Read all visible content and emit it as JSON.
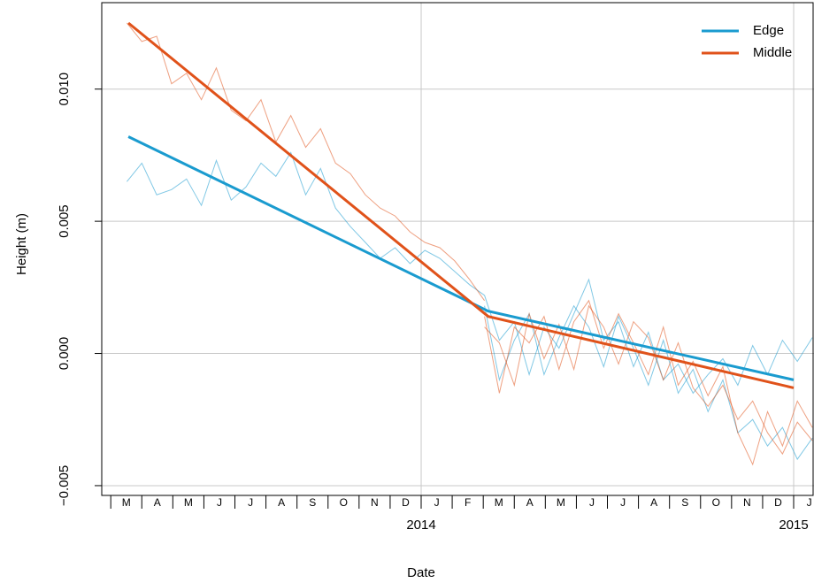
{
  "chart_data": {
    "type": "line",
    "x_label": "Date",
    "y_label": "Height (m)",
    "xlim": [
      2013.1425,
      2015.0546
    ],
    "ylim": [
      -0.00537,
      0.01327
    ],
    "grid": true,
    "legend": "top-right",
    "yticks": [
      {
        "value": 0.01,
        "label": "0.010"
      },
      {
        "value": 0.005,
        "label": "0.005"
      },
      {
        "value": 0,
        "label": "0.000"
      },
      {
        "value": -0.005,
        "label": "−0.005"
      }
    ],
    "xticks": [
      2014,
      2015
    ],
    "x_minor_ticks": [
      2013.1667,
      2013.25,
      2013.3333,
      2013.4167,
      2013.5,
      2013.5833,
      2013.6667,
      2013.75,
      2013.8333,
      2013.9167,
      2014,
      2014.0833,
      2014.1667,
      2014.25,
      2014.3333,
      2014.4167,
      2014.5,
      2014.5833,
      2014.6667,
      2014.75,
      2014.8333,
      2014.9167,
      2015
    ],
    "x_month_labels": [
      {
        "value": 2013.2083,
        "label": "M"
      },
      {
        "value": 2013.2917,
        "label": "A"
      },
      {
        "value": 2013.375,
        "label": "M"
      },
      {
        "value": 2013.4583,
        "label": "J"
      },
      {
        "value": 2013.5417,
        "label": "J"
      },
      {
        "value": 2013.625,
        "label": "A"
      },
      {
        "value": 2013.7083,
        "label": "S"
      },
      {
        "value": 2013.7917,
        "label": "O"
      },
      {
        "value": 2013.875,
        "label": "N"
      },
      {
        "value": 2013.9583,
        "label": "D"
      },
      {
        "value": 2014.0417,
        "label": "J"
      },
      {
        "value": 2014.125,
        "label": "F"
      },
      {
        "value": 2014.2083,
        "label": "M"
      },
      {
        "value": 2014.2917,
        "label": "A"
      },
      {
        "value": 2014.375,
        "label": "M"
      },
      {
        "value": 2014.4583,
        "label": "J"
      },
      {
        "value": 2014.5417,
        "label": "J"
      },
      {
        "value": 2014.625,
        "label": "A"
      },
      {
        "value": 2014.7083,
        "label": "S"
      },
      {
        "value": 2014.7917,
        "label": "O"
      },
      {
        "value": 2014.875,
        "label": "N"
      },
      {
        "value": 2014.9583,
        "label": "D"
      },
      {
        "value": 2015.0417,
        "label": "J"
      }
    ],
    "series": [
      {
        "name": "Edge",
        "color": "#1a9bcf",
        "x": [
          2013.214,
          2014.18,
          2015.0
        ],
        "values": [
          0.0082,
          0.0016,
          -0.001
        ]
      },
      {
        "name": "Middle",
        "color": "#e0521a",
        "x": [
          2013.214,
          2014.18,
          2015.0
        ],
        "values": [
          0.0125,
          0.0014,
          -0.0013
        ]
      }
    ],
    "traces": [
      {
        "color": "#1a9bcf",
        "x": [
          2013.21,
          2013.25,
          2013.29,
          2013.33,
          2013.37,
          2013.41,
          2013.45,
          2013.49,
          2013.53,
          2013.57,
          2013.61,
          2013.65,
          2013.69,
          2013.73,
          2013.77,
          2013.81,
          2013.85,
          2013.89,
          2013.93,
          2013.97,
          2014.01,
          2014.05,
          2014.09,
          2014.13,
          2014.17
        ],
        "values": [
          0.0065,
          0.0072,
          0.006,
          0.0062,
          0.0066,
          0.0056,
          0.0073,
          0.0058,
          0.0063,
          0.0072,
          0.0067,
          0.0076,
          0.006,
          0.007,
          0.0055,
          0.0048,
          0.0042,
          0.0036,
          0.004,
          0.0034,
          0.0039,
          0.0036,
          0.0031,
          0.0026,
          0.0022
        ]
      },
      {
        "color": "#e0521a",
        "x": [
          2013.21,
          2013.25,
          2013.29,
          2013.33,
          2013.37,
          2013.41,
          2013.45,
          2013.49,
          2013.53,
          2013.57,
          2013.61,
          2013.65,
          2013.69,
          2013.73,
          2013.77,
          2013.81,
          2013.85,
          2013.89,
          2013.93,
          2013.97,
          2014.01,
          2014.05,
          2014.09,
          2014.13,
          2014.17
        ],
        "values": [
          0.0125,
          0.0118,
          0.012,
          0.0102,
          0.0106,
          0.0096,
          0.0108,
          0.0092,
          0.0088,
          0.0096,
          0.008,
          0.009,
          0.0078,
          0.0085,
          0.0072,
          0.0068,
          0.006,
          0.0055,
          0.0052,
          0.0046,
          0.0042,
          0.004,
          0.0035,
          0.0028,
          0.002
        ]
      },
      {
        "color": "#1a9bcf",
        "x": [
          2014.17,
          2014.21,
          2014.25,
          2014.29,
          2014.33,
          2014.37,
          2014.41,
          2014.45,
          2014.49,
          2014.53,
          2014.57,
          2014.61,
          2014.65,
          2014.69,
          2014.73,
          2014.77,
          2014.81,
          2014.85,
          2014.89,
          2014.93,
          2014.97,
          2015.01,
          2015.05
        ],
        "values": [
          0.0022,
          0.0005,
          0.0012,
          -0.0008,
          0.001,
          0.0002,
          0.0015,
          0.0028,
          0.0005,
          0.0012,
          -0.0005,
          0.0008,
          -0.001,
          -0.0004,
          -0.0015,
          -0.0008,
          -0.0002,
          -0.0012,
          0.0003,
          -0.0008,
          0.0005,
          -0.0003,
          0.0006
        ]
      },
      {
        "color": "#1a9bcf",
        "x": [
          2014.17,
          2014.21,
          2014.25,
          2014.29,
          2014.33,
          2014.37,
          2014.41,
          2014.45,
          2014.49,
          2014.53,
          2014.57,
          2014.61,
          2014.65,
          2014.69,
          2014.73,
          2014.77,
          2014.81,
          2014.85,
          2014.89,
          2014.93,
          2014.97,
          2015.01,
          2015.05
        ],
        "values": [
          0.0018,
          -0.001,
          0.0005,
          0.0015,
          -0.0008,
          0.0006,
          0.0018,
          0.001,
          -0.0005,
          0.0014,
          0.0002,
          -0.0012,
          0.0005,
          -0.0015,
          -0.0006,
          -0.0022,
          -0.001,
          -0.003,
          -0.0025,
          -0.0035,
          -0.0028,
          -0.004,
          -0.0032
        ]
      },
      {
        "color": "#e0521a",
        "x": [
          2014.17,
          2014.21,
          2014.25,
          2014.29,
          2014.33,
          2014.37,
          2014.41,
          2014.45,
          2014.49,
          2014.53,
          2014.57,
          2014.61,
          2014.65,
          2014.69,
          2014.73,
          2014.77,
          2014.81,
          2014.85,
          2014.89,
          2014.93,
          2014.97,
          2015.01,
          2015.05
        ],
        "values": [
          0.0014,
          -0.0015,
          0.001,
          0.0004,
          0.0014,
          -0.0006,
          0.0012,
          0.002,
          0.0002,
          0.0015,
          0.0004,
          -0.0008,
          0.001,
          -0.0012,
          -0.0003,
          -0.0016,
          -0.0005,
          -0.003,
          -0.0042,
          -0.0022,
          -0.0035,
          -0.0018,
          -0.0028
        ]
      },
      {
        "color": "#e0521a",
        "x": [
          2014.17,
          2014.21,
          2014.25,
          2014.29,
          2014.33,
          2014.37,
          2014.41,
          2014.45,
          2014.49,
          2014.53,
          2014.57,
          2014.61,
          2014.65,
          2014.69,
          2014.73,
          2014.77,
          2014.81,
          2014.85,
          2014.89,
          2014.93,
          2014.97,
          2015.01,
          2015.05
        ],
        "values": [
          0.001,
          0.0004,
          -0.0012,
          0.0015,
          -0.0002,
          0.0011,
          -0.0006,
          0.0018,
          0.001,
          -0.0004,
          0.0012,
          0.0006,
          -0.001,
          0.0004,
          -0.0013,
          -0.002,
          -0.0012,
          -0.0025,
          -0.0018,
          -0.003,
          -0.0038,
          -0.0026,
          -0.0033
        ]
      }
    ]
  }
}
